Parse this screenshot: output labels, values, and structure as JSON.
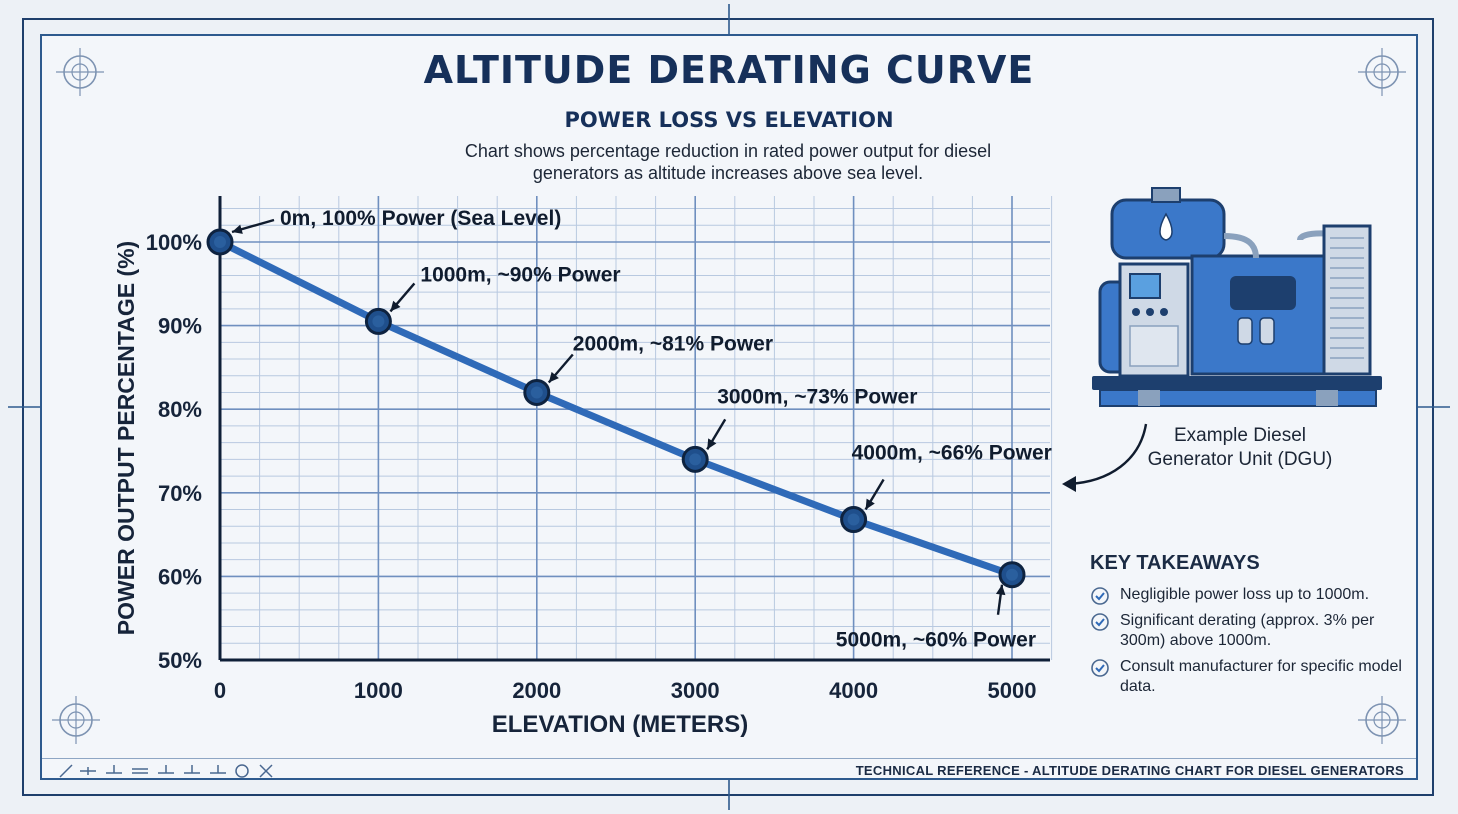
{
  "header": {
    "title": "ALTITUDE DERATING CURVE",
    "subtitle": "POWER LOSS VS ELEVATION",
    "description": "Chart shows percentage reduction in rated power output for diesel generators as altitude increases above sea level."
  },
  "chart_data": {
    "type": "line",
    "xlabel": "ELEVATION (METERS)",
    "ylabel": "POWER OUTPUT PERCENTAGE (%)",
    "x_ticks": [
      "0",
      "1000",
      "2000",
      "3000",
      "4000",
      "5000"
    ],
    "y_ticks": [
      "50%",
      "60%",
      "70%",
      "80%",
      "90%",
      "100%"
    ],
    "xlim": [
      0,
      5000
    ],
    "ylim": [
      50,
      100
    ],
    "grid": true,
    "series": [
      {
        "x": [
          0,
          1000,
          2000,
          3000,
          4000,
          5000
        ],
        "values": [
          100,
          90.5,
          82,
          74,
          66.8,
          60.2
        ]
      }
    ],
    "annotations": [
      "0m, 100% Power (Sea Level)",
      "1000m, ~90% Power",
      "2000m, ~81% Power",
      "3000m, ~73% Power",
      "4000m, ~66% Power",
      "5000m, ~60% Power"
    ]
  },
  "generator": {
    "caption_line1": "Example Diesel",
    "caption_line2": "Generator Unit (DGU)"
  },
  "takeaways": {
    "heading": "KEY TAKEAWAYS",
    "items": [
      "Negligible power loss up to 1000m.",
      "Significant derating (approx. 3% per 300m) above 1000m.",
      "Consult manufacturer for specific model data."
    ]
  },
  "footer": {
    "text": "TECHNICAL REFERENCE - ALTITUDE DERATING CHART FOR DIESEL GENERATORS"
  },
  "colors": {
    "line": "#2f6ab8",
    "marker_fill": "#1f4f8c",
    "grid_major": "#6f8fbf",
    "grid_minor": "#b8c9e0",
    "axis": "#0f1f38",
    "accent": "#2f6ab8"
  }
}
